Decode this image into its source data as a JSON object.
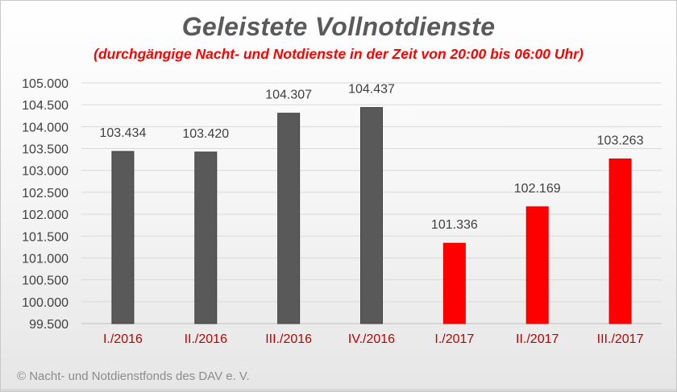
{
  "title": "Geleistete Vollnotdienste",
  "subtitle": "(durchgängige Nacht- und Notdienste in der Zeit von 20:00 bis 06:00 Uhr)",
  "footer": "© Nacht- und Notdienstfonds des DAV e. V.",
  "chart_data": {
    "type": "bar",
    "title": "Geleistete Vollnotdienste",
    "subtitle": "(durchgängige Nacht- und Notdienste in der Zeit von 20:00 bis 06:00 Uhr)",
    "categories": [
      "I./2016",
      "II./2016",
      "III./2016",
      "IV./2016",
      "I./2017",
      "II./2017",
      "III./2017"
    ],
    "values": [
      103434,
      103420,
      104307,
      104437,
      101336,
      102169,
      103263
    ],
    "value_labels": [
      "103.434",
      "103.420",
      "104.307",
      "104.437",
      "101.336",
      "102.169",
      "103.263"
    ],
    "bar_colors": [
      "#595959",
      "#595959",
      "#595959",
      "#595959",
      "#ff0000",
      "#ff0000",
      "#ff0000"
    ],
    "category_label_color": "#c00000",
    "ylim": [
      99500,
      105000
    ],
    "yticks": [
      99500,
      100000,
      100500,
      101000,
      101500,
      102000,
      102500,
      103000,
      103500,
      104000,
      104500,
      105000
    ],
    "ytick_labels": [
      "99.500",
      "100.000",
      "100.500",
      "101.000",
      "101.500",
      "102.000",
      "102.500",
      "103.000",
      "103.500",
      "104.000",
      "104.500",
      "105.000"
    ],
    "grid": true,
    "legend": "none"
  }
}
